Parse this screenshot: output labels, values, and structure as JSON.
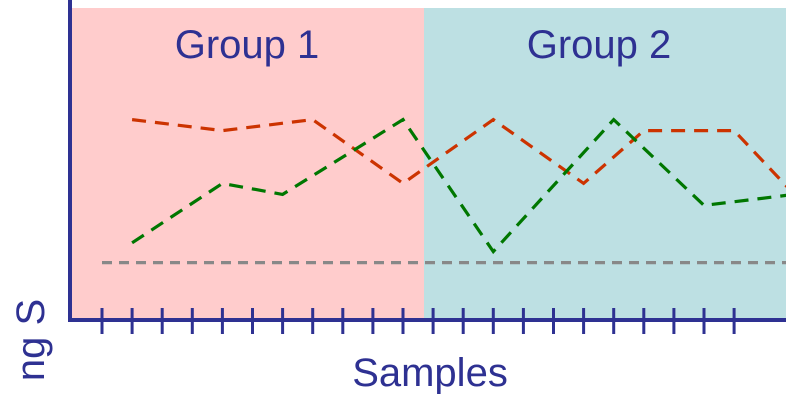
{
  "chart_data": {
    "type": "line",
    "title": "",
    "xlabel": "Samples",
    "ylabel": "ng S",
    "groups": [
      {
        "label": "Group 1",
        "color": "#ffcccc",
        "from": 1,
        "to": 11
      },
      {
        "label": "Group 2",
        "color": "#bde0e3",
        "from": 12,
        "to": 22
      }
    ],
    "x": [
      1,
      2,
      3,
      4,
      5,
      6,
      7,
      8,
      9,
      10,
      11,
      12,
      13,
      14,
      15,
      16,
      17,
      18,
      19,
      20,
      21,
      22
    ],
    "series": [
      {
        "color": "#cc3300",
        "dash": "dashed",
        "points": [
          [
            2,
            0.82
          ],
          [
            5,
            0.77
          ],
          [
            8,
            0.82
          ],
          [
            11,
            0.53
          ],
          [
            14,
            0.82
          ],
          [
            17,
            0.53
          ],
          [
            19,
            0.77
          ],
          [
            22,
            0.77
          ],
          [
            24,
            0.48
          ]
        ]
      },
      {
        "color": "#007700",
        "dash": "dashed",
        "points": [
          [
            2,
            0.26
          ],
          [
            5,
            0.53
          ],
          [
            7,
            0.48
          ],
          [
            11,
            0.82
          ],
          [
            14,
            0.22
          ],
          [
            18,
            0.82
          ],
          [
            21,
            0.43
          ],
          [
            24,
            0.48
          ]
        ]
      },
      {
        "color": "#888888",
        "dash": "dashed",
        "points": [
          [
            1,
            0.17
          ],
          [
            24.5,
            0.17
          ]
        ]
      }
    ],
    "xlim": [
      0,
      25
    ],
    "ylim": [
      0,
      1
    ],
    "grid": false
  }
}
